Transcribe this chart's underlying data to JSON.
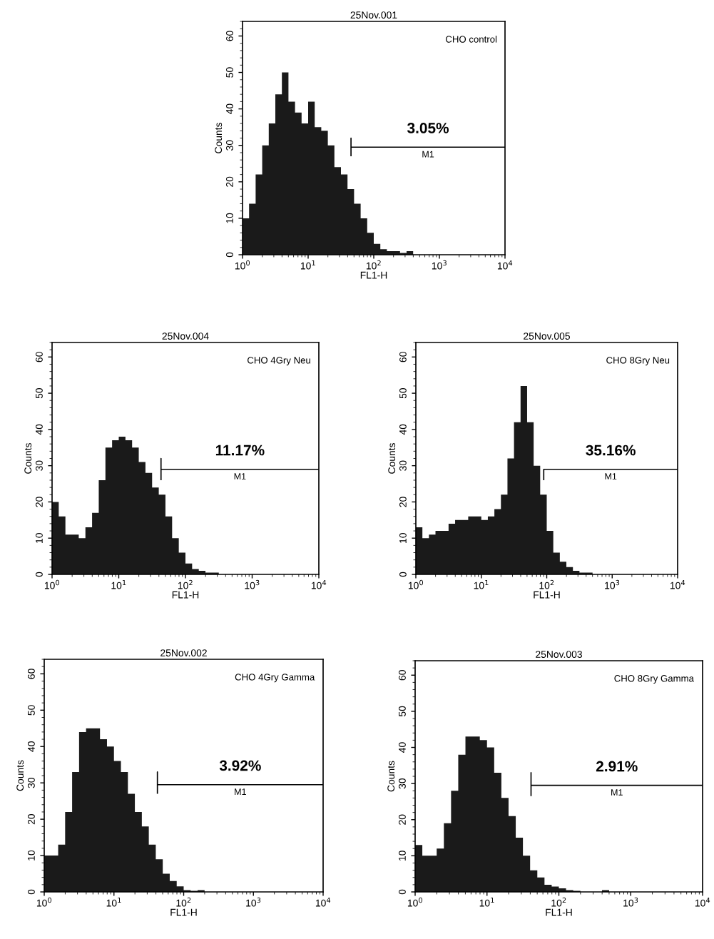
{
  "chart_data": [
    {
      "type": "histogram",
      "title": "25Nov.001",
      "xlabel": "FL1-H",
      "ylabel": "Counts",
      "color": "#1a1a1a",
      "log": "x",
      "bins": [
        1,
        1.259,
        1.585,
        1.995,
        2.512,
        3.162,
        3.981,
        5.012,
        6.31,
        7.943,
        10,
        12.59,
        15.85,
        19.95,
        25.12,
        31.62,
        39.81,
        50.12,
        63.1,
        79.43,
        100,
        125.9,
        158.5,
        199.5,
        251.2,
        316.2,
        398.1,
        501.2,
        631,
        794.3,
        1000,
        1259,
        1585,
        1995,
        2512,
        3162,
        3981,
        5012,
        6310,
        7943,
        10000
      ],
      "values": [
        10,
        14,
        22,
        30,
        36,
        44,
        50,
        42,
        39,
        36,
        42,
        35,
        34,
        30,
        24,
        22,
        18,
        14,
        10,
        6,
        3,
        1.5,
        1,
        1,
        0.5,
        1,
        0,
        0,
        0,
        0,
        0,
        0,
        0,
        0,
        0,
        0,
        0,
        0,
        0,
        0
      ],
      "series": [
        {
          "type": "line",
          "x": [
            45,
            45,
            45,
            10000
          ],
          "values": [
            27,
            32,
            29.5,
            29.5
          ],
          "color": "#000000"
        }
      ],
      "annotations": [
        "CHO control",
        "3.05%",
        "M1"
      ],
      "xlim": [
        1,
        10000
      ],
      "xticks": [
        {
          "value": 1,
          "label": "10$^{0}$"
        },
        {
          "value": 10,
          "label": "10$^{1}$"
        },
        {
          "value": 100,
          "label": "10$^{2}$"
        },
        {
          "value": 1000,
          "label": "10$^{3}$"
        },
        {
          "value": 10000,
          "label": "10$^{4}$"
        }
      ],
      "ylim": [
        0,
        64
      ],
      "yticks": [
        0,
        10,
        20,
        30,
        40,
        50,
        60
      ],
      "grid": false,
      "legend": false
    },
    {
      "type": "histogram",
      "title": "25Nov.004",
      "xlabel": "FL1-H",
      "ylabel": "Counts",
      "color": "#1a1a1a",
      "log": "x",
      "bins": [
        1,
        1.259,
        1.585,
        1.995,
        2.512,
        3.162,
        3.981,
        5.012,
        6.31,
        7.943,
        10,
        12.59,
        15.85,
        19.95,
        25.12,
        31.62,
        39.81,
        50.12,
        63.1,
        79.43,
        100,
        125.9,
        158.5,
        199.5,
        251.2,
        316.2,
        398.1,
        501.2,
        631,
        794.3,
        1000,
        1259,
        1585,
        1995,
        2512,
        3162,
        3981,
        5012,
        6310,
        7943,
        10000
      ],
      "values": [
        20,
        16,
        11,
        11,
        10,
        13,
        17,
        26,
        35,
        37,
        38,
        37,
        35,
        31,
        28,
        24,
        22,
        16,
        10,
        6,
        3,
        1.5,
        1,
        0.5,
        0.5,
        0,
        0,
        0,
        0,
        0,
        0,
        0,
        0,
        0,
        0,
        0,
        0,
        0,
        0,
        0
      ],
      "series": [
        {
          "type": "line",
          "x": [
            43,
            43,
            43,
            10000
          ],
          "values": [
            26,
            32,
            29,
            29
          ],
          "color": "#000000"
        }
      ],
      "annotations": [
        "CHO 4Gry Neu",
        "11.17%",
        "M1"
      ],
      "xlim": [
        1,
        10000
      ],
      "xticks": [
        {
          "value": 1,
          "label": "10$^{0}$"
        },
        {
          "value": 10,
          "label": "10$^{1}$"
        },
        {
          "value": 100,
          "label": "10$^{2}$"
        },
        {
          "value": 1000,
          "label": "10$^{3}$"
        },
        {
          "value": 10000,
          "label": "10$^{4}$"
        }
      ],
      "ylim": [
        0,
        64
      ],
      "yticks": [
        0,
        10,
        20,
        30,
        40,
        50,
        60
      ],
      "grid": false,
      "legend": false
    },
    {
      "type": "histogram",
      "title": "25Nov.005",
      "xlabel": "FL1-H",
      "ylabel": "Counts",
      "color": "#1a1a1a",
      "log": "x",
      "bins": [
        1,
        1.259,
        1.585,
        1.995,
        2.512,
        3.162,
        3.981,
        5.012,
        6.31,
        7.943,
        10,
        12.59,
        15.85,
        19.95,
        25.12,
        31.62,
        39.81,
        50.12,
        63.1,
        79.43,
        100,
        125.9,
        158.5,
        199.5,
        251.2,
        316.2,
        398.1,
        501.2,
        631,
        794.3,
        1000,
        1259,
        1585,
        1995,
        2512,
        3162,
        3981,
        5012,
        6310,
        7943,
        10000
      ],
      "values": [
        13,
        10,
        11,
        12,
        12,
        14,
        15,
        15,
        16,
        16,
        15,
        16,
        18,
        22,
        32,
        42,
        52,
        42,
        30,
        22,
        12,
        6,
        3.5,
        2,
        1,
        0.5,
        0.5,
        0,
        0,
        0,
        0,
        0,
        0,
        0,
        0,
        0,
        0,
        0,
        0,
        0
      ],
      "series": [
        {
          "type": "line",
          "x": [
            90,
            90,
            90,
            10000
          ],
          "values": [
            26,
            29,
            29,
            29
          ],
          "color": "#000000"
        }
      ],
      "annotations": [
        "CHO 8Gry Neu",
        "35.16%",
        "M1"
      ],
      "xlim": [
        1,
        10000
      ],
      "xticks": [
        {
          "value": 1,
          "label": "10$^{0}$"
        },
        {
          "value": 10,
          "label": "10$^{1}$"
        },
        {
          "value": 100,
          "label": "10$^{2}$"
        },
        {
          "value": 1000,
          "label": "10$^{3}$"
        },
        {
          "value": 10000,
          "label": "10$^{4}$"
        }
      ],
      "ylim": [
        0,
        64
      ],
      "yticks": [
        0,
        10,
        20,
        30,
        40,
        50,
        60
      ],
      "grid": false,
      "legend": false
    },
    {
      "type": "histogram",
      "title": "25Nov.002",
      "xlabel": "FL1-H",
      "ylabel": "Counts",
      "color": "#1a1a1a",
      "log": "x",
      "bins": [
        1,
        1.259,
        1.585,
        1.995,
        2.512,
        3.162,
        3.981,
        5.012,
        6.31,
        7.943,
        10,
        12.59,
        15.85,
        19.95,
        25.12,
        31.62,
        39.81,
        50.12,
        63.1,
        79.43,
        100,
        125.9,
        158.5,
        199.5,
        251.2,
        316.2,
        398.1,
        501.2,
        631,
        794.3,
        1000,
        1259,
        1585,
        1995,
        2512,
        3162,
        3981,
        5012,
        6310,
        7943,
        10000
      ],
      "values": [
        10,
        10,
        13,
        22,
        33,
        44,
        45,
        45,
        42,
        40,
        36,
        33,
        27,
        22,
        18,
        13,
        9,
        5,
        3,
        1.5,
        0.5,
        0.3,
        0.5,
        0,
        0,
        0,
        0,
        0,
        0,
        0,
        0,
        0,
        0,
        0,
        0,
        0,
        0,
        0,
        0,
        0
      ],
      "series": [
        {
          "type": "line",
          "x": [
            42,
            42,
            42,
            10000
          ],
          "values": [
            27,
            33,
            29.5,
            29.5
          ],
          "color": "#000000"
        }
      ],
      "annotations": [
        "CHO 4Gry Gamma",
        "3.92%",
        "M1"
      ],
      "xlim": [
        1,
        10000
      ],
      "xticks": [
        {
          "value": 1,
          "label": "10$^{0}$"
        },
        {
          "value": 10,
          "label": "10$^{1}$"
        },
        {
          "value": 100,
          "label": "10$^{2}$"
        },
        {
          "value": 1000,
          "label": "10$^{3}$"
        },
        {
          "value": 10000,
          "label": "10$^{4}$"
        }
      ],
      "ylim": [
        0,
        64
      ],
      "yticks": [
        0,
        10,
        20,
        30,
        40,
        50,
        60
      ],
      "grid": false,
      "legend": false
    },
    {
      "type": "histogram",
      "title": "25Nov.003",
      "xlabel": "FL1-H",
      "ylabel": "Counts",
      "color": "#1a1a1a",
      "log": "x",
      "bins": [
        1,
        1.259,
        1.585,
        1.995,
        2.512,
        3.162,
        3.981,
        5.012,
        6.31,
        7.943,
        10,
        12.59,
        15.85,
        19.95,
        25.12,
        31.62,
        39.81,
        50.12,
        63.1,
        79.43,
        100,
        125.9,
        158.5,
        199.5,
        251.2,
        316.2,
        398.1,
        501.2,
        631,
        794.3,
        1000,
        1259,
        1585,
        1995,
        2512,
        3162,
        3981,
        5012,
        6310,
        7943,
        10000
      ],
      "values": [
        13,
        10,
        10,
        12,
        19,
        28,
        38,
        43,
        43,
        42,
        40,
        33,
        26,
        21,
        15,
        10,
        6,
        4,
        2,
        1.5,
        1,
        0.5,
        0.3,
        0,
        0,
        0,
        0.5,
        0,
        0,
        0,
        0,
        0,
        0,
        0,
        0,
        0,
        0,
        0,
        0,
        0
      ],
      "series": [
        {
          "type": "line",
          "x": [
            41,
            41,
            41,
            10000
          ],
          "values": [
            26.5,
            33,
            29.5,
            29.5
          ],
          "color": "#000000"
        }
      ],
      "annotations": [
        "CHO 8Gry Gamma",
        "2.91%",
        "M1"
      ],
      "xlim": [
        1,
        10000
      ],
      "xticks": [
        {
          "value": 1,
          "label": "10$^{0}$"
        },
        {
          "value": 10,
          "label": "10$^{1}$"
        },
        {
          "value": 100,
          "label": "10$^{2}$"
        },
        {
          "value": 1000,
          "label": "10$^{3}$"
        },
        {
          "value": 10000,
          "label": "10$^{4}$"
        }
      ],
      "ylim": [
        0,
        64
      ],
      "yticks": [
        0,
        10,
        20,
        30,
        40,
        50,
        60
      ],
      "grid": false,
      "legend": false
    }
  ]
}
